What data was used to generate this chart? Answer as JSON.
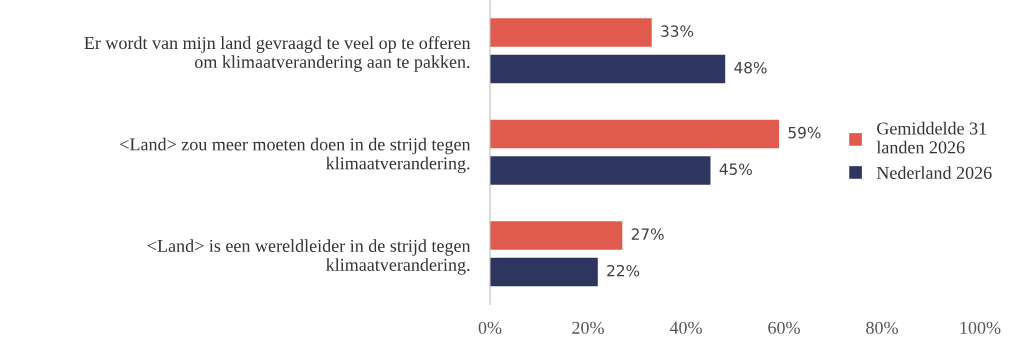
{
  "chart_data": {
    "type": "bar",
    "orientation": "horizontal",
    "categories": [
      "Er wordt van mijn land gevraagd te veel op te offeren\nom klimaatverandering aan te pakken.",
      "<Land> zou meer moeten doen in de strijd tegen\nklimaatverandering.",
      "<Land> is een wereldleider in de strijd tegen\nklimaatverandering."
    ],
    "series": [
      {
        "name": "Gemiddelde 31\nlanden 2026",
        "color": "#e05a4e",
        "values": [
          33,
          59,
          27
        ],
        "value_labels": [
          "33%",
          "59%",
          "27%"
        ]
      },
      {
        "name": "Nederland 2026",
        "color": "#2e3660",
        "values": [
          48,
          45,
          22
        ],
        "value_labels": [
          "48%",
          "45%",
          "22%"
        ]
      }
    ],
    "xlim": [
      0,
      100
    ],
    "xticks": [
      {
        "value": 0,
        "label": "0%"
      },
      {
        "value": 20,
        "label": "20%"
      },
      {
        "value": 40,
        "label": "40%"
      },
      {
        "value": 60,
        "label": "60%"
      },
      {
        "value": 80,
        "label": "80%"
      },
      {
        "value": 100,
        "label": "100%"
      }
    ],
    "grid": false,
    "legend": "right"
  }
}
